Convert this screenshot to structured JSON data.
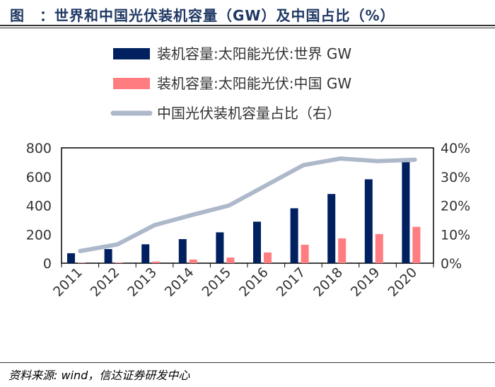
{
  "title": "图　：世界和中国光伏装机容量（GW）及中国占比（%）",
  "source": "资料来源: wind，信达证券研发中心",
  "chart_data": {
    "type": "bar",
    "title": "世界和中国光伏装机容量（GW）及中国占比（%）",
    "categories": [
      "2011",
      "2012",
      "2013",
      "2014",
      "2015",
      "2016",
      "2017",
      "2018",
      "2019",
      "2020"
    ],
    "series": [
      {
        "name": "装机容量:太阳能光伏:世界 GW",
        "type": "bar",
        "axis": "left",
        "color": "#002060",
        "values": [
          69,
          98,
          131,
          167,
          214,
          288,
          381,
          480,
          582,
          701
        ]
      },
      {
        "name": "装机容量:太阳能光伏:中国 GW",
        "type": "bar",
        "axis": "left",
        "color": "#ff7c80",
        "values": [
          3,
          4,
          11,
          25,
          39,
          74,
          128,
          172,
          202,
          252
        ]
      },
      {
        "name": "中国光伏装机容量占比（右）",
        "type": "line",
        "axis": "right",
        "color": "#adb9ca",
        "values": [
          4.2,
          6.5,
          13.2,
          16.7,
          20.0,
          27.0,
          34.0,
          36.3,
          35.4,
          35.9
        ]
      }
    ],
    "left_axis": {
      "range": [
        0,
        800
      ],
      "ticks": [
        "0",
        "200",
        "400",
        "600",
        "800"
      ]
    },
    "right_axis": {
      "range": [
        0,
        40
      ],
      "ticks": [
        "0%",
        "10%",
        "20%",
        "30%",
        "40%"
      ]
    },
    "legend_position": "top",
    "grid": false
  }
}
